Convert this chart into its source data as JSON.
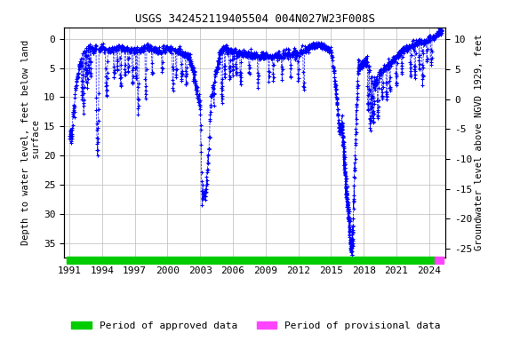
{
  "title": "USGS 342452119405504 004N027W23F008S",
  "ylabel_left": "Depth to water level, feet below land\n surface",
  "ylabel_right": "Groundwater level above NGVD 1929, feet",
  "ylim_left": [
    37.5,
    -2
  ],
  "ylim_right": [
    -26.47,
    12.0
  ],
  "yticks_left": [
    0,
    5,
    10,
    15,
    20,
    25,
    30,
    35
  ],
  "yticks_right": [
    10,
    5,
    0,
    -5,
    -10,
    -15,
    -20,
    -25
  ],
  "xlim": [
    1990.5,
    2025.5
  ],
  "xticks": [
    1991,
    1994,
    1997,
    2000,
    2003,
    2006,
    2009,
    2012,
    2015,
    2018,
    2021,
    2024
  ],
  "line_color": "#0000FF",
  "legend_approved_color": "#00CC00",
  "legend_provisional_color": "#FF44FF",
  "background_color": "#ffffff",
  "grid_color": "#bbbbbb",
  "title_fontsize": 9,
  "axis_label_fontsize": 7.5,
  "tick_fontsize": 8,
  "legend_fontsize": 8,
  "approved_bar_start": 1990.75,
  "approved_bar_end": 2024.55,
  "provisional_bar_start": 2024.55,
  "provisional_bar_end": 2025.3
}
